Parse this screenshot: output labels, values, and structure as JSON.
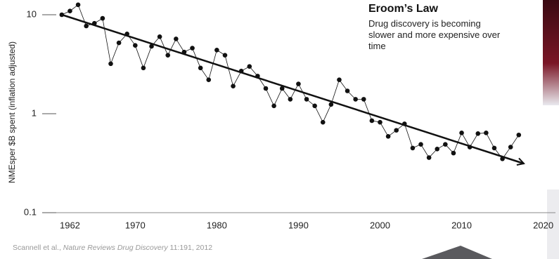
{
  "chart_data": {
    "type": "line",
    "title": "Eroom’s Law",
    "subtitle": "Drug discovery is becoming slower and more expensive over time",
    "y_label": "NMEsper $B spent (inflation adjusted)",
    "source": [
      "Scannell et al., ",
      "Nature Reviews Drug Discovery",
      " 11:191, 2012"
    ],
    "log_y": true,
    "color": "#111111",
    "x": [
      1961,
      1962,
      1963,
      1964,
      1965,
      1966,
      1967,
      1968,
      1969,
      1970,
      1971,
      1972,
      1973,
      1974,
      1975,
      1976,
      1977,
      1978,
      1979,
      1980,
      1981,
      1982,
      1983,
      1984,
      1985,
      1986,
      1987,
      1988,
      1989,
      1990,
      1991,
      1992,
      1993,
      1994,
      1995,
      1996,
      1997,
      1998,
      1999,
      2000,
      2001,
      2002,
      2003,
      2004,
      2005,
      2006,
      2007,
      2008,
      2009,
      2010,
      2011,
      2012,
      2013,
      2014,
      2015,
      2016,
      2017
    ],
    "values": [
      10,
      10.9,
      12.6,
      7.7,
      8.2,
      9.2,
      3.2,
      5.2,
      6.4,
      4.9,
      2.9,
      4.8,
      6.0,
      3.9,
      5.7,
      4.2,
      4.6,
      2.9,
      2.2,
      4.4,
      3.9,
      1.9,
      2.7,
      3.0,
      2.4,
      1.8,
      1.2,
      1.8,
      1.4,
      2.0,
      1.4,
      1.2,
      0.82,
      1.24,
      2.2,
      1.7,
      1.4,
      1.4,
      0.85,
      0.82,
      0.59,
      0.68,
      0.79,
      0.45,
      0.49,
      0.36,
      0.44,
      0.49,
      0.4,
      0.64,
      0.46,
      0.63,
      0.64,
      0.45,
      0.35,
      0.46,
      0.61
    ],
    "xlim": [
      1958.6,
      2021.5
    ],
    "xticks": [
      1962,
      1970,
      1980,
      1990,
      2000,
      2010,
      2020
    ],
    "ylim": [
      0.1,
      10
    ],
    "yticks": [
      0.1,
      1,
      10
    ]
  }
}
